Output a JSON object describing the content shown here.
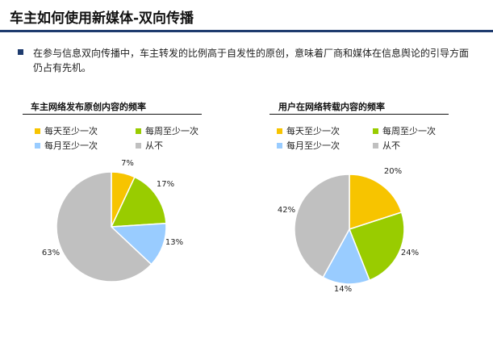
{
  "page": {
    "title": "车主如何使用新媒体-双向传播",
    "bullet": "在参与信息双向传播中，车主转发的比例高于自发性的原创，意味着厂商和媒体在信息舆论的引导方面仍占有先机。"
  },
  "colors": {
    "title_rule": "#1e3b6e",
    "daily": "#f7c400",
    "weekly": "#99cc00",
    "monthly": "#99ccff",
    "never": "#c0c0c0"
  },
  "chart_data": [
    {
      "type": "pie",
      "title": "车主网络发布原创内容的频率",
      "categories": [
        "每天至少一次",
        "每周至少一次",
        "每月至少一次",
        "从不"
      ],
      "values": [
        7,
        17,
        13,
        63
      ],
      "labels": [
        "7%",
        "17%",
        "13%",
        "63%"
      ],
      "colors": [
        "#f7c400",
        "#99cc00",
        "#99ccff",
        "#c0c0c0"
      ],
      "legend": "top"
    },
    {
      "type": "pie",
      "title": "用户在网络转载内容的频率",
      "categories": [
        "每天至少一次",
        "每周至少一次",
        "每月至少一次",
        "从不"
      ],
      "values": [
        20,
        24,
        14,
        42
      ],
      "labels": [
        "20%",
        "24%",
        "14%",
        "42%"
      ],
      "colors": [
        "#f7c400",
        "#99cc00",
        "#99ccff",
        "#c0c0c0"
      ],
      "legend": "top"
    }
  ]
}
